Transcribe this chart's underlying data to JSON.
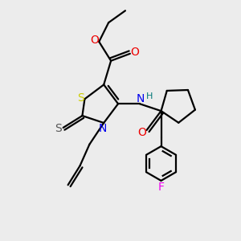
{
  "bg_color": "#ececec",
  "atom_colors": {
    "S_yellow": "#cccc00",
    "S_dark": "#555555",
    "N": "#0000ee",
    "O": "#ee0000",
    "F": "#ee00ee",
    "H": "#007777",
    "C": "#000000"
  },
  "bond_color": "#000000",
  "bond_width": 1.6
}
